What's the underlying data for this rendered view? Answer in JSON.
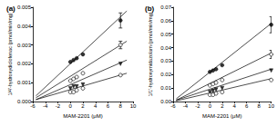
{
  "chart_data": [
    {
      "type": "scatter",
      "title": "(a)",
      "x_label": "MAM-2201 (μM)",
      "y_label": "1/4'-hydroxydiclofenac (pmol/min/mg)",
      "xlim": [
        -6,
        10
      ],
      "xticks": [
        -6,
        -4,
        -2,
        0,
        2,
        4,
        6,
        8,
        10
      ],
      "ylim": [
        0,
        0.005
      ],
      "yticks": [
        {
          "value": 0,
          "label": "0.000"
        },
        {
          "value": 0.001,
          "label": "0.001"
        },
        {
          "value": 0.002,
          "label": "0.002"
        },
        {
          "value": 0.003,
          "label": "0.003"
        },
        {
          "value": 0.004,
          "label": "0.004"
        },
        {
          "value": 0.005,
          "label": "0.005"
        }
      ],
      "grid": false,
      "series": [
        {
          "color": "#000000",
          "marker": "circle",
          "x": [
            0,
            0.5,
            1,
            2,
            8
          ],
          "values": [
            0.0021,
            0.0022,
            0.0023,
            0.0025,
            0.0043
          ],
          "errors": [
            null,
            null,
            null,
            null,
            0.0004
          ],
          "fit": [
            [
              -5.5,
              0.0003
            ],
            [
              9,
              0.0048
            ]
          ]
        },
        {
          "color": "#000000",
          "marker": "circle-open",
          "x": [
            0,
            0.5,
            1,
            2,
            8
          ],
          "values": [
            0.0011,
            0.0012,
            0.0013,
            0.0015,
            0.003
          ],
          "errors": [
            null,
            null,
            null,
            null,
            0.0002
          ],
          "fit": [
            [
              -5.5,
              0.0002
            ],
            [
              9,
              0.0032
            ]
          ]
        },
        {
          "color": "#000000",
          "marker": "triangle-down",
          "x": [
            0,
            0.5,
            1,
            2,
            8
          ],
          "values": [
            0.0007,
            0.0008,
            0.0008,
            0.0009,
            0.002
          ],
          "errors": [
            null,
            null,
            null,
            null,
            null
          ],
          "fit": [
            [
              -5.5,
              0.0001
            ],
            [
              9,
              0.0022
            ]
          ]
        },
        {
          "color": "#000000",
          "marker": "circle-open",
          "x": [
            0,
            0.5,
            1,
            2,
            8
          ],
          "values": [
            0.0005,
            0.0005,
            0.0006,
            0.0007,
            0.0014
          ],
          "errors": [
            null,
            null,
            null,
            null,
            null
          ],
          "fit": [
            [
              -5.5,
              0.0001
            ],
            [
              9,
              0.0015
            ]
          ]
        }
      ]
    },
    {
      "type": "scatter",
      "title": "(b)",
      "x_label": "MAM-2201 (μM)",
      "y_label": "1/1'-hydroxymidazolam (pmol/min/mg)",
      "xlim": [
        -6,
        10
      ],
      "xticks": [
        -6,
        -4,
        -2,
        0,
        2,
        4,
        6,
        8,
        10
      ],
      "ylim": [
        0,
        0.07
      ],
      "yticks": [
        {
          "value": 0,
          "label": "0.00"
        },
        {
          "value": 0.01,
          "label": "0.01"
        },
        {
          "value": 0.02,
          "label": "0.02"
        },
        {
          "value": 0.03,
          "label": "0.03"
        },
        {
          "value": 0.04,
          "label": "0.04"
        },
        {
          "value": 0.05,
          "label": "0.05"
        },
        {
          "value": 0.06,
          "label": "0.06"
        },
        {
          "value": 0.07,
          "label": "0.07"
        }
      ],
      "grid": false,
      "series": [
        {
          "color": "#000000",
          "marker": "circle",
          "x": [
            0,
            0.5,
            1,
            2,
            10
          ],
          "values": [
            0.022,
            0.023,
            0.024,
            0.027,
            0.057
          ],
          "errors": [
            null,
            null,
            null,
            null,
            0.006
          ],
          "fit": [
            [
              -5.5,
              0.002
            ],
            [
              10,
              0.058
            ]
          ]
        },
        {
          "color": "#000000",
          "marker": "circle-open",
          "x": [
            0,
            0.5,
            1,
            2,
            10
          ],
          "values": [
            0.012,
            0.013,
            0.014,
            0.016,
            0.035
          ],
          "errors": [
            null,
            null,
            null,
            null,
            0.003
          ],
          "fit": [
            [
              -5.5,
              0.001
            ],
            [
              10,
              0.036
            ]
          ]
        },
        {
          "color": "#000000",
          "marker": "triangle-down",
          "x": [
            0,
            0.5,
            1,
            2,
            10
          ],
          "values": [
            0.007,
            0.008,
            0.009,
            0.01,
            0.023
          ],
          "errors": [
            null,
            null,
            null,
            null,
            null
          ],
          "fit": [
            [
              -5.5,
              0.001
            ],
            [
              10,
              0.024
            ]
          ]
        },
        {
          "color": "#000000",
          "marker": "circle-open",
          "x": [
            0,
            0.5,
            1,
            2,
            10
          ],
          "values": [
            0.005,
            0.005,
            0.006,
            0.007,
            0.016
          ],
          "errors": [
            null,
            null,
            null,
            null,
            null
          ],
          "fit": [
            [
              -5.5,
              0.0005
            ],
            [
              10,
              0.017
            ]
          ]
        }
      ]
    }
  ]
}
